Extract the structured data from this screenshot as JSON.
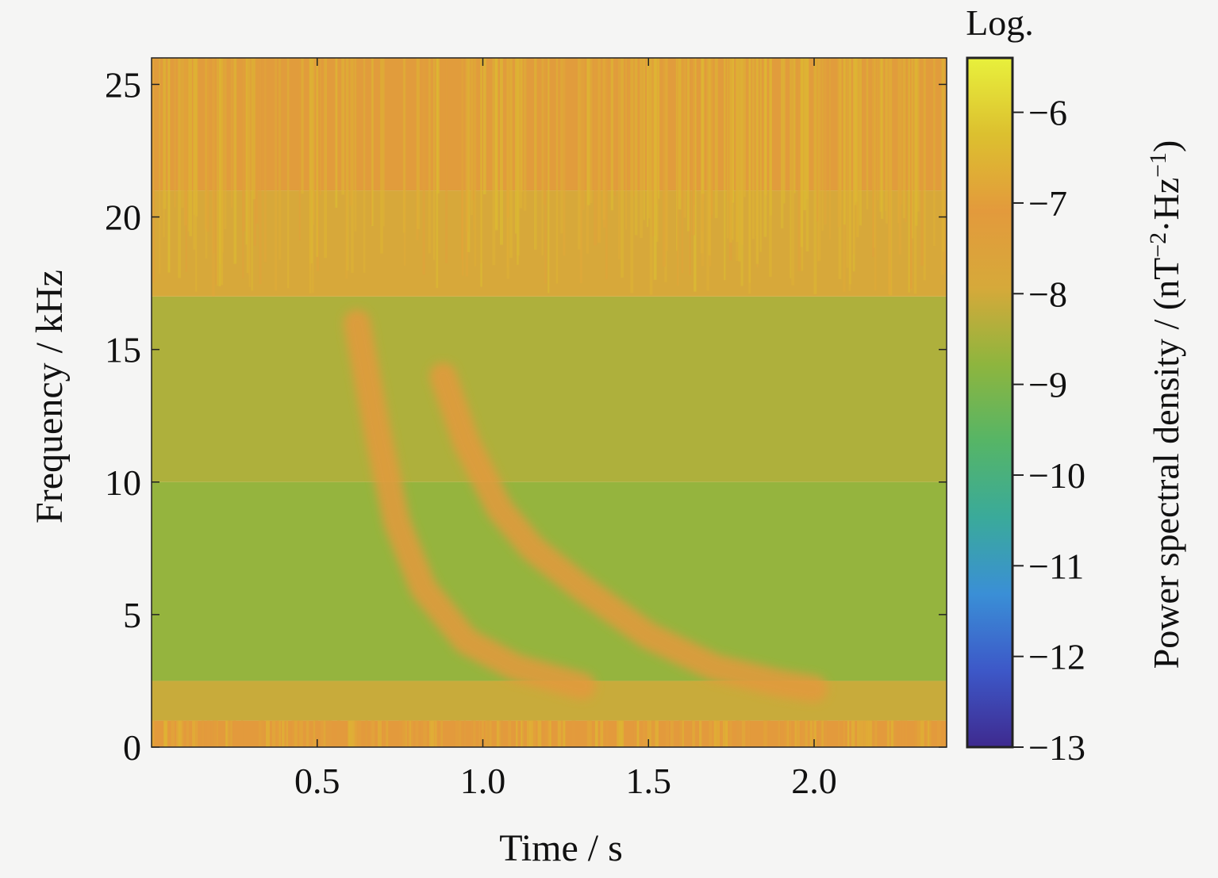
{
  "chart_data": {
    "type": "heatmap",
    "title": "",
    "xlabel": "Time / s",
    "ylabel": "Frequency / kHz",
    "xlim": [
      0,
      2.4
    ],
    "ylim": [
      0,
      26
    ],
    "x_ticks": [
      {
        "value": 0.5,
        "label": "0.5"
      },
      {
        "value": 1.0,
        "label": "1.0"
      },
      {
        "value": 1.5,
        "label": "1.5"
      },
      {
        "value": 2.0,
        "label": "2.0"
      }
    ],
    "y_ticks": [
      {
        "value": 0,
        "label": "0"
      },
      {
        "value": 5,
        "label": "5"
      },
      {
        "value": 10,
        "label": "10"
      },
      {
        "value": 15,
        "label": "15"
      },
      {
        "value": 20,
        "label": "20"
      },
      {
        "value": 25,
        "label": "25"
      }
    ],
    "colorbar": {
      "title": "Log.",
      "label": "Power spectral density / (nT",
      "label_sup1": "−2",
      "label_mid": "·Hz",
      "label_sup2": "−1",
      "label_end": ")",
      "range": [
        -13,
        -5.4
      ],
      "ticks": [
        {
          "value": -6,
          "label": "−6"
        },
        {
          "value": -7,
          "label": "−7"
        },
        {
          "value": -8,
          "label": "−8"
        },
        {
          "value": -9,
          "label": "−9"
        },
        {
          "value": -10,
          "label": "−10"
        },
        {
          "value": -11,
          "label": "−11"
        },
        {
          "value": -12,
          "label": "−12"
        },
        {
          "value": -13,
          "label": "−13"
        }
      ],
      "colormap": [
        "#3e2a8f",
        "#3d58c8",
        "#3a8fd6",
        "#3aaa9a",
        "#56b566",
        "#8eb53e",
        "#d6a93a",
        "#e39a3c",
        "#dcc02f",
        "#e8f03c"
      ]
    },
    "background_levels": [
      {
        "f_range": [
          0,
          1.0
        ],
        "level": -7.1
      },
      {
        "f_range": [
          1.0,
          2.5
        ],
        "level": -8.1
      },
      {
        "f_range": [
          2.5,
          10
        ],
        "level": -8.7
      },
      {
        "f_range": [
          10,
          17
        ],
        "level": -8.4
      },
      {
        "f_range": [
          17,
          21
        ],
        "level": -7.9
      },
      {
        "f_range": [
          21,
          26
        ],
        "level": -7.2
      }
    ],
    "whistler_traces": [
      {
        "points": [
          [
            0.62,
            16
          ],
          [
            0.68,
            12
          ],
          [
            0.74,
            8.5
          ],
          [
            0.82,
            6
          ],
          [
            0.95,
            4
          ],
          [
            1.1,
            3
          ],
          [
            1.3,
            2.3
          ]
        ],
        "level": -7.1
      },
      {
        "points": [
          [
            0.88,
            14
          ],
          [
            0.95,
            11.5
          ],
          [
            1.05,
            9
          ],
          [
            1.15,
            7.5
          ],
          [
            1.3,
            6
          ],
          [
            1.5,
            4.2
          ],
          [
            1.7,
            3
          ],
          [
            1.9,
            2.4
          ],
          [
            2.0,
            2.2
          ]
        ],
        "level": -7.1
      }
    ]
  }
}
